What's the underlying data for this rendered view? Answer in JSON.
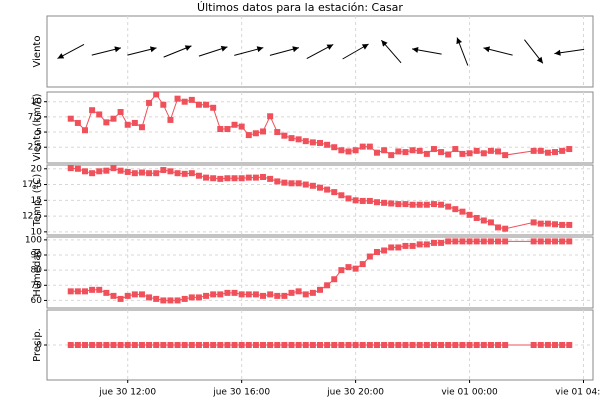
{
  "title": "Últimos datos para la estación: Casar",
  "xlim": [
    "jue 30 09:10",
    "vie 01 04:20"
  ],
  "xticks": [
    "jue 30 12:00",
    "jue 30 16:00",
    "jue 30 20:00",
    "vie 01 00:00",
    "vie 01 04:00"
  ],
  "x": [
    "jue 30 10:00",
    "jue 30 10:15",
    "jue 30 10:30",
    "jue 30 10:45",
    "jue 30 11:00",
    "jue 30 11:15",
    "jue 30 11:30",
    "jue 30 11:45",
    "jue 30 12:00",
    "jue 30 12:15",
    "jue 30 12:30",
    "jue 30 12:45",
    "jue 30 13:00",
    "jue 30 13:15",
    "jue 30 13:30",
    "jue 30 13:45",
    "jue 30 14:00",
    "jue 30 14:15",
    "jue 30 14:30",
    "jue 30 14:45",
    "jue 30 15:00",
    "jue 30 15:15",
    "jue 30 15:30",
    "jue 30 15:45",
    "jue 30 16:00",
    "jue 30 16:15",
    "jue 30 16:30",
    "jue 30 16:45",
    "jue 30 17:00",
    "jue 30 17:15",
    "jue 30 17:30",
    "jue 30 17:45",
    "jue 30 18:00",
    "jue 30 18:15",
    "jue 30 18:30",
    "jue 30 18:45",
    "jue 30 19:00",
    "jue 30 19:15",
    "jue 30 19:30",
    "jue 30 19:45",
    "jue 30 20:00",
    "jue 30 20:15",
    "jue 30 20:30",
    "jue 30 20:45",
    "jue 30 21:00",
    "jue 30 21:15",
    "jue 30 21:30",
    "jue 30 21:45",
    "jue 30 22:00",
    "jue 30 22:15",
    "jue 30 22:30",
    "jue 30 22:45",
    "jue 30 23:00",
    "jue 30 23:15",
    "jue 30 23:30",
    "jue 30 23:45",
    "vie 01 00:00",
    "vie 01 00:15",
    "vie 01 00:30",
    "vie 01 00:45",
    "vie 01 01:00",
    "vie 01 01:15",
    "vie 01 02:15",
    "vie 01 02:30",
    "vie 01 02:45",
    "vie 01 03:00",
    "vie 01 03:15",
    "vie 01 03:30"
  ],
  "chart_data": [
    {
      "type": "arrow",
      "ylabel": "Viento",
      "color": "#000000",
      "x": [
        "jue 30 10:00",
        "jue 30 11:15",
        "jue 30 12:30",
        "jue 30 13:45",
        "jue 30 15:00",
        "jue 30 16:15",
        "jue 30 17:30",
        "jue 30 18:45",
        "jue 30 20:00",
        "jue 30 21:15",
        "jue 30 22:30",
        "jue 30 23:45",
        "vie 01 01:00",
        "vie 01 02:15",
        "vie 01 03:30"
      ],
      "values": [
        242,
        76,
        76,
        68,
        72,
        75,
        75,
        62,
        60,
        319,
        280,
        339,
        284,
        142,
        262
      ]
    },
    {
      "type": "line",
      "ylabel": "Viento (km/h)",
      "color": "#f0505a",
      "ylim": [
        -0.1,
        11.6
      ],
      "yticks": [
        {
          "value": 2.5,
          "label": "2,5"
        },
        5,
        {
          "value": 7.5,
          "label": "7,5"
        },
        10
      ],
      "values": [
        7.2,
        6.5,
        5.3,
        8.6,
        7.9,
        6.6,
        7.2,
        8.3,
        6.2,
        6.5,
        5.8,
        9.8,
        11.2,
        9.5,
        7.0,
        10.5,
        10.0,
        10.3,
        9.5,
        9.5,
        9.0,
        5.5,
        5.5,
        6.2,
        5.9,
        4.5,
        4.8,
        5.1,
        7.6,
        5.0,
        4.4,
        4.0,
        3.8,
        3.5,
        3.3,
        3.2,
        2.9,
        2.5,
        2.0,
        1.8,
        2.0,
        2.6,
        2.6,
        1.6,
        2.0,
        1.2,
        1.8,
        1.7,
        2.0,
        1.9,
        1.4,
        2.2,
        1.7,
        1.3,
        2.2,
        1.4,
        1.5,
        1.9,
        1.5,
        1.9,
        1.8,
        1.2,
        1.9,
        1.9,
        1.6,
        1.7,
        1.9,
        2.2
      ]
    },
    {
      "type": "line",
      "ylabel": "Temp. (ºC)",
      "color": "#f0505a",
      "ylim": [
        9.5,
        20.6
      ],
      "yticks": [
        10,
        {
          "value": 12.5,
          "label": "12,5"
        },
        15,
        {
          "value": 17.5,
          "label": "17,5"
        },
        20
      ],
      "values": [
        20.1,
        20.0,
        19.6,
        19.3,
        19.6,
        19.7,
        20.1,
        19.7,
        19.5,
        19.3,
        19.4,
        19.3,
        19.3,
        19.8,
        19.6,
        19.3,
        19.2,
        19.3,
        18.9,
        18.6,
        18.5,
        18.4,
        18.5,
        18.5,
        18.5,
        18.6,
        18.6,
        18.7,
        18.4,
        18.0,
        17.8,
        17.7,
        17.7,
        17.5,
        17.3,
        17.0,
        16.7,
        16.3,
        15.8,
        15.3,
        15.0,
        14.9,
        14.9,
        14.7,
        14.6,
        14.5,
        14.4,
        14.4,
        14.3,
        14.3,
        14.3,
        14.4,
        14.3,
        14.0,
        13.6,
        13.2,
        12.7,
        12.2,
        11.8,
        11.5,
        10.7,
        10.5,
        11.5,
        11.3,
        11.3,
        11.2,
        11.1,
        11.1
      ]
    },
    {
      "type": "line",
      "ylabel": "Humedad",
      "color": "#f0505a",
      "ylim": [
        55,
        101.9
      ],
      "yticks": [
        60,
        70,
        80,
        90,
        100
      ],
      "values": [
        66,
        66,
        66,
        67,
        67,
        65,
        63,
        61,
        63,
        64,
        64,
        62,
        61,
        60,
        60,
        60,
        61,
        62,
        62,
        63,
        64,
        64,
        65,
        65,
        64,
        64,
        64,
        63,
        64,
        63,
        63,
        65,
        66,
        64,
        65,
        67,
        70,
        74,
        80,
        82,
        81,
        84,
        89,
        92,
        93,
        95,
        95,
        96,
        96,
        97,
        97,
        98,
        98,
        99,
        99,
        99,
        99,
        99,
        99,
        99,
        99,
        99,
        99,
        99,
        99,
        99,
        99,
        99
      ]
    },
    {
      "type": "line",
      "ylabel": "Precip.",
      "color": "#f0505a",
      "ylim": [
        -1,
        1
      ],
      "yticks": [
        0
      ],
      "values": [
        0,
        0,
        0,
        0,
        0,
        0,
        0,
        0,
        0,
        0,
        0,
        0,
        0,
        0,
        0,
        0,
        0,
        0,
        0,
        0,
        0,
        0,
        0,
        0,
        0,
        0,
        0,
        0,
        0,
        0,
        0,
        0,
        0,
        0,
        0,
        0,
        0,
        0,
        0,
        0,
        0,
        0,
        0,
        0,
        0,
        0,
        0,
        0,
        0,
        0,
        0,
        0,
        0,
        0,
        0,
        0,
        0,
        0,
        0,
        0,
        0,
        0,
        0,
        0,
        0,
        0,
        0,
        0
      ]
    }
  ]
}
